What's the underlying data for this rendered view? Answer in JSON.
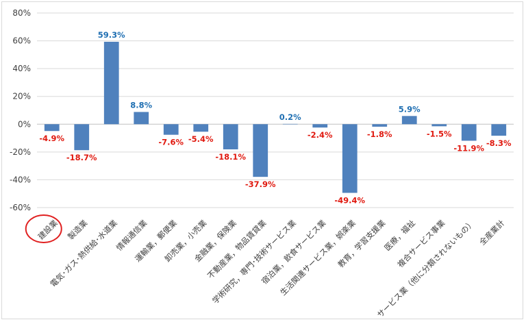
{
  "chart_data": {
    "type": "bar",
    "title": "",
    "xlabel": "",
    "ylabel": "",
    "ylim": [
      -60,
      80
    ],
    "yticks": [
      80,
      60,
      40,
      20,
      0,
      -20,
      -40,
      -60
    ],
    "ytick_labels": [
      "80%",
      "60%",
      "40%",
      "20%",
      "0%",
      "-20%",
      "-40%",
      "-60%"
    ],
    "grid": true,
    "legend": "none",
    "categories": [
      "建設業",
      "製造業",
      "電気･ガス･熱供給･水道業",
      "情報通信業",
      "運輸業，郵便業",
      "卸売業，小売業",
      "金融業，保険業",
      "不動産業，物品賃貸業",
      "学術研究，専門･技術サービス業",
      "宿泊業，飲食サービス業",
      "生活関連サービス業，娯楽業",
      "教育，学習支援業",
      "医療，福祉",
      "複合サービス事業",
      "サービス業（他に分類されないもの）",
      "全産業計"
    ],
    "values": [
      -4.9,
      -18.7,
      59.3,
      8.8,
      -7.6,
      -5.4,
      -18.1,
      -37.9,
      0.2,
      -2.4,
      -49.4,
      -1.8,
      5.9,
      -1.5,
      -11.9,
      -8.3
    ],
    "data_labels": [
      "-4.9%",
      "-18.7%",
      "59.3%",
      "8.8%",
      "-7.6%",
      "-5.4%",
      "-18.1%",
      "-37.9%",
      "0.2%",
      "-2.4%",
      "-49.4%",
      "-1.8%",
      "5.9%",
      "-1.5%",
      "-11.9%",
      "-8.3%"
    ],
    "highlighted_category": "建設業",
    "colors": {
      "bar": "#4f81bd",
      "positive_label": "#1f6fb2",
      "negative_label": "#e0190f",
      "highlight_ellipse": "#e02020",
      "grid": "#d9d9d9",
      "tick_text": "#404040"
    }
  }
}
